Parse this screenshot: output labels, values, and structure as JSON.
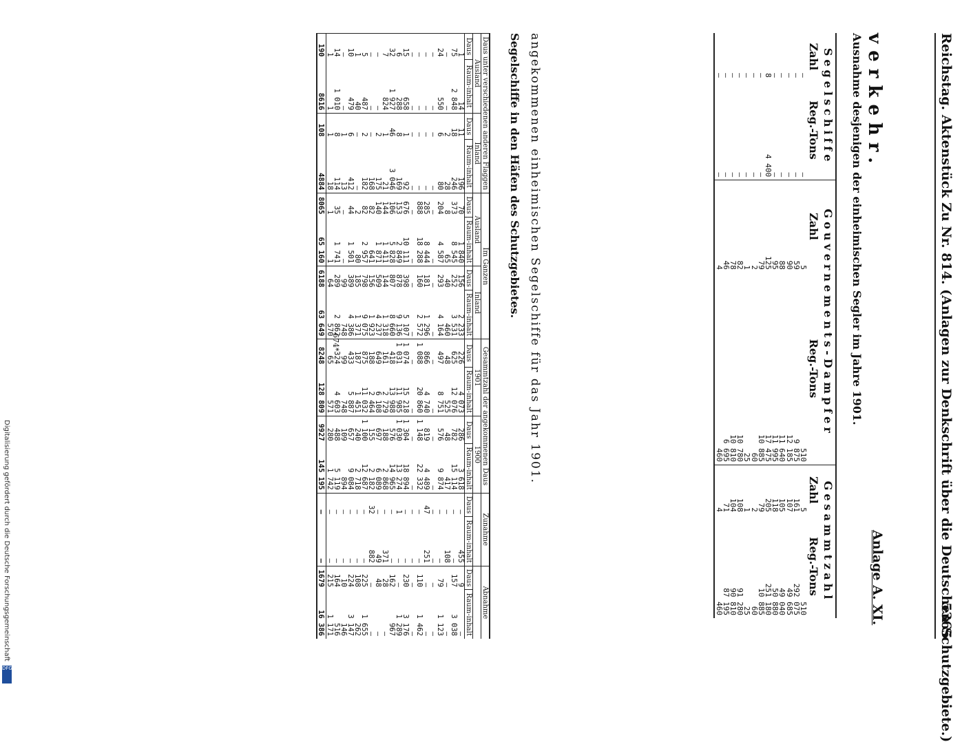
{
  "header": {
    "left": "Reichstag.",
    "title": "Aktenstück Zu Nr. 814. (Anlagen zur Denkschrift über die Deutschen Schutzgebiete.)",
    "page_number": "5365"
  },
  "annex_label": "Anlage A. XI.",
  "section_title": "verkehr.",
  "table1": {
    "caption": "Ausnahme desjenigen der einheimischen Segler im Jahre 1901.",
    "groups": [
      "Segelschiffe",
      "Gouvernements-Dampfer",
      "Gesammtzahl"
    ],
    "columns": [
      "Zahl",
      "Reg.-Tons",
      "Zahl",
      "Reg.-Tons",
      "Zahl",
      "Reg.-Tons"
    ],
    "rows": [
      [
        "—",
        "—",
        "5",
        "510",
        "5",
        "510"
      ],
      [
        "—",
        "—",
        "59",
        "9 875",
        "161",
        "292 075"
      ],
      [
        "—",
        "—",
        "90",
        "12 185",
        "107",
        "49 685"
      ],
      [
        "—",
        "—",
        "88",
        "11 640",
        "105",
        "49 040"
      ],
      [
        "—",
        "—",
        "95",
        "11 995",
        "118",
        "50 880"
      ],
      [
        "8",
        "4 400",
        "125",
        "17 475",
        "205",
        "251 180"
      ],
      [
        "—",
        "—",
        "79",
        "10 885",
        "79",
        "10 885"
      ],
      [
        "—",
        "—",
        "2",
        "60",
        "2",
        "60"
      ],
      [
        "—",
        "—",
        "1",
        "25",
        "1",
        "25"
      ],
      [
        "—",
        "—",
        "82",
        "10 780",
        "108",
        "91 280"
      ],
      [
        "—",
        "—",
        "78",
        "10 810",
        "104",
        "90 810"
      ],
      [
        "—",
        "—",
        "46",
        "6 695",
        "71",
        "87 195"
      ],
      [
        "—",
        "—",
        "4",
        "460",
        "4",
        "460"
      ]
    ]
  },
  "section2": {
    "title": "Segelschiffe in den Häfen des Schutzgebietes.",
    "subtitle": "angekommenen einheimischen Segelschiffe für das Jahr 1901."
  },
  "table2": {
    "group_headers": [
      "Daus unter verschiedenen anderen Flaggen",
      "Im Ganzen",
      "Gesammtzahl der angekommenen Daus",
      "Zunahme",
      "Abnahme"
    ],
    "sub_headers": [
      "Ausland",
      "Inland",
      "Ausland",
      "Inland",
      "1901",
      "1900"
    ],
    "columns": [
      "Daus",
      "Raum-inhalt",
      "Daus",
      "Raum-inhalt",
      "Daus",
      "Raum-inhalt",
      "Daus",
      "Raum-inhalt",
      "Daus",
      "Raum-inhalt",
      "Daus",
      "Raum-inhalt",
      "Daus",
      "Raum-inhalt",
      "Daus",
      "Raum-inhalt"
    ],
    "rows": [
      [
        "1",
        "14",
        "11",
        "196",
        "70",
        "1 840",
        "156",
        "2 233",
        "226",
        "4 073",
        "286",
        "3 618",
        "—",
        "455",
        "9",
        "—"
      ],
      [
        "75",
        "2 848",
        "18",
        "246",
        "373",
        "8 545",
        "252",
        "3 531",
        "625",
        "12 076",
        "782",
        "15 114",
        "—",
        "—",
        "157",
        "3 038"
      ],
      [
        "—",
        "—",
        "2",
        "28",
        "8",
        "65",
        "40",
        "460",
        "48",
        "525",
        "48",
        "417",
        "—",
        "108",
        "—",
        "—"
      ],
      [
        "24",
        "550",
        "6",
        "80",
        "204",
        "4 587",
        "293",
        "4 164",
        "497",
        "8 751",
        "576",
        "9 874",
        "—",
        "—",
        "79",
        "1 123"
      ],
      [
        "—",
        "—",
        "—",
        "—",
        "—",
        "—",
        "—",
        "—",
        "—",
        "—",
        "—",
        "—",
        "—",
        "—",
        "—",
        "—"
      ],
      [
        "—",
        "—",
        "—",
        "—",
        "285",
        "8 444",
        "181",
        "1 296",
        "866",
        "4 740",
        "819",
        "4 489",
        "47",
        "251",
        "—",
        "—"
      ],
      [
        "—",
        "—",
        "—",
        "—",
        "888",
        "18 288",
        "160",
        "2 572",
        "1 088",
        "20 860",
        "1 148",
        "22 332",
        "—",
        "—",
        "110",
        "1 462"
      ],
      [
        "—",
        "—",
        "—",
        "—",
        "—",
        "—",
        "—",
        "—",
        "—",
        "—",
        "—",
        "—",
        "—",
        "—",
        "—",
        "—"
      ],
      [
        "15",
        "658",
        "1",
        "92",
        "676",
        "10 111",
        "398",
        "5 107",
        "1 074",
        "15 218",
        "1 304",
        "18 894",
        "—",
        "—",
        "230",
        "3 176"
      ],
      [
        "6",
        "288",
        "8",
        "169",
        "153",
        "2 849",
        "878",
        "9 136",
        "1 031",
        "11 985",
        "1 030",
        "13 274",
        "1",
        "—",
        "—",
        "1 289"
      ],
      [
        "32",
        "1 927",
        "46",
        "3 046",
        "106",
        "5 828",
        "807",
        "8 660",
        "418",
        "13 988",
        "576",
        "14 965",
        "—",
        "—",
        "162",
        "967"
      ],
      [
        "7",
        "824",
        "1",
        "21",
        "144",
        "1 411",
        "144",
        "1 318",
        "161",
        "2 729",
        "188",
        "2 868",
        "—",
        "371",
        "28",
        "—"
      ],
      [
        "—",
        "—",
        "2",
        "175",
        "140",
        "1 871",
        "509",
        "4 237",
        "649",
        "6 108",
        "697",
        "6 089",
        "—",
        "49",
        "48",
        "—"
      ],
      [
        "—",
        "—",
        "—",
        "168",
        "82",
        "641",
        "156",
        "1 923",
        "188",
        "2 464",
        "155",
        "2 182",
        "32",
        "882",
        "—",
        "—"
      ],
      [
        "5",
        "487",
        "2",
        "182",
        "82",
        "2 957",
        "798",
        "9 075",
        "875",
        "11 032",
        "1 100",
        "12 687",
        "—",
        "—",
        "225",
        "1 655"
      ],
      [
        "1",
        "40",
        "—",
        "—",
        "2",
        "80",
        "185",
        "1 371",
        "187",
        "1 451",
        "240",
        "2 718",
        "—",
        "—",
        "108",
        "262"
      ],
      [
        "10",
        "479",
        "6",
        "412",
        "44",
        "1 501",
        "389",
        "4 386",
        "433",
        "5 887",
        "657",
        "9 084",
        "—",
        "—",
        "224",
        "3 147"
      ],
      [
        "—",
        "—",
        "1",
        "13",
        "—",
        "—",
        "99",
        "748",
        "99",
        "748",
        "109",
        "894",
        "—",
        "—",
        "10",
        "146"
      ],
      [
        "14",
        "1 010",
        "8",
        "114",
        "35",
        "1 741",
        "289",
        "2 862",
        "324",
        "4 603",
        "488",
        "5 119",
        "—",
        "—",
        "164",
        "516"
      ],
      [
        "1",
        "1",
        "1",
        "18",
        "1",
        "1",
        "64",
        "570",
        "65",
        "571",
        "280",
        "1 742",
        "—",
        "—",
        "215",
        "1 171"
      ]
    ],
    "totals": [
      "190",
      "8616",
      "108",
      "4884",
      "8065",
      "65 160",
      "6188",
      "63 649",
      "8248",
      "128 809",
      "9927",
      "145 195",
      "—",
      "—",
      "1679",
      "16 386"
    ]
  },
  "footer_page": "674*",
  "side_credit": "Digitalisierung gefördert durch die Deutsche Forschungsgemeinschaft",
  "dfg_logo": "DFG"
}
